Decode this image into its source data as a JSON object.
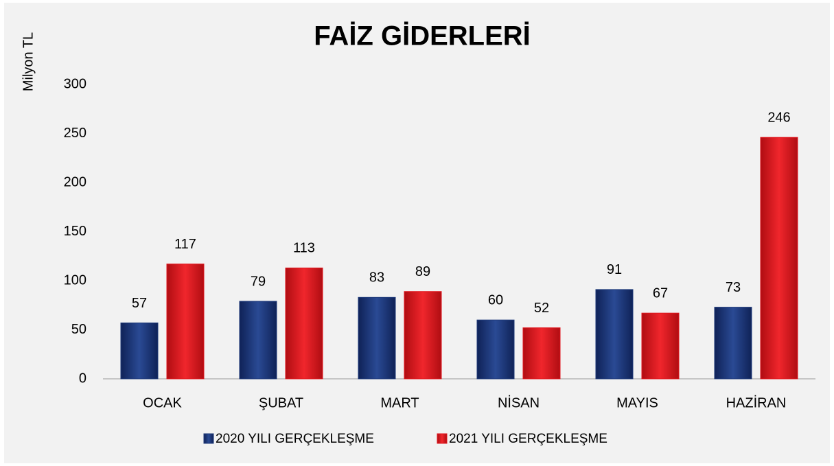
{
  "chart_data": {
    "type": "bar",
    "title": "FAİZ GİDERLERİ",
    "y_label": "Milyon TL",
    "categories": [
      "OCAK",
      "ŞUBAT",
      "MART",
      "NİSAN",
      "MAYIS",
      "HAZİRAN"
    ],
    "series": [
      {
        "name": "2020 YILI  GERÇEKLEŞME",
        "color": "#1f3a7a",
        "values": [
          57,
          79,
          83,
          60,
          91,
          73
        ]
      },
      {
        "name": "2021 YILI  GERÇEKLEŞME",
        "color": "#e0161d",
        "values": [
          117,
          113,
          89,
          52,
          67,
          246
        ]
      }
    ],
    "ylim": [
      0,
      300
    ],
    "yticks": [
      0,
      50,
      100,
      150,
      200,
      250,
      300
    ],
    "grid": false,
    "legend": "bottom"
  }
}
